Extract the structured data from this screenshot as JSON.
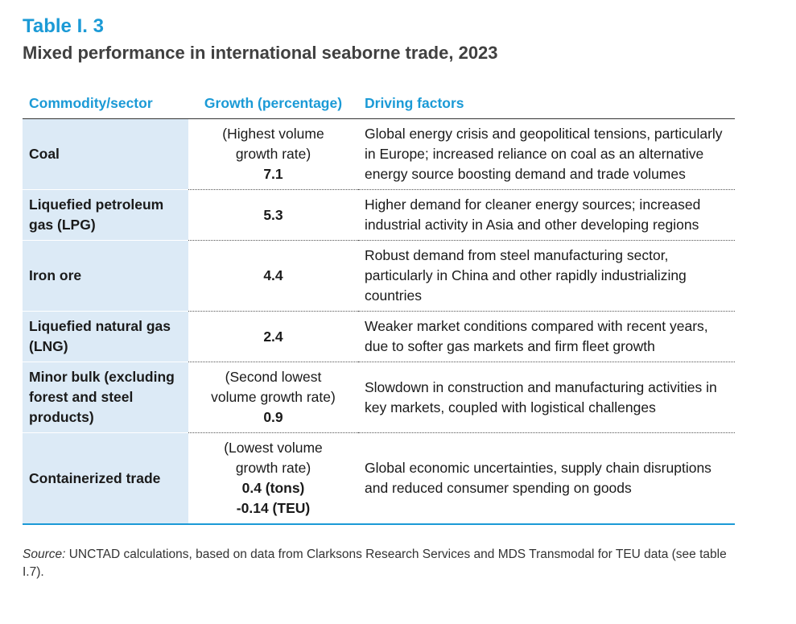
{
  "header": {
    "label": "Table I. 3",
    "title": "Mixed performance in international seaborne trade, 2023"
  },
  "columns": {
    "commodity": "Commodity/sector",
    "growth": "Growth (percentage)",
    "factors": "Driving factors"
  },
  "rows": [
    {
      "commodity": "Coal",
      "growth_note": [
        "(Highest volume",
        "growth rate)"
      ],
      "growth_values": [
        "7.1"
      ],
      "factors": "Global energy crisis and geopolitical tensions, particularly in Europe; increased reliance on coal as an alternative energy source boosting demand and trade volumes"
    },
    {
      "commodity": "Liquefied petroleum gas (LPG)",
      "growth_note": [],
      "growth_values": [
        "5.3"
      ],
      "factors": "Higher demand for cleaner energy sources; increased industrial activity in Asia and other developing regions"
    },
    {
      "commodity": "Iron ore",
      "growth_note": [],
      "growth_values": [
        "4.4"
      ],
      "factors": "Robust demand from steel manufacturing sector, particularly in China and other rapidly industrializing countries"
    },
    {
      "commodity": "Liquefied natural gas (LNG)",
      "growth_note": [],
      "growth_values": [
        "2.4"
      ],
      "factors": "Weaker market conditions compared with recent years, due to softer gas markets and firm fleet growth"
    },
    {
      "commodity": "Minor bulk (excluding forest and steel products)",
      "growth_note": [
        "(Second lowest",
        "volume growth rate)"
      ],
      "growth_values": [
        "0.9"
      ],
      "factors": "Slowdown in construction and manufacturing activities in key markets, coupled with logistical challenges"
    },
    {
      "commodity": "Containerized trade",
      "growth_note": [
        "(Lowest volume",
        "growth rate)"
      ],
      "growth_values": [
        "0.4 (tons)",
        "-0.14 (TEU)"
      ],
      "factors": "Global economic uncertainties, supply chain disruptions and reduced consumer spending on goods"
    }
  ],
  "source": {
    "label": "Source:",
    "text": "UNCTAD calculations, based on data from Clarksons Research Services and MDS Transmodal for TEU data (see table I.7)."
  }
}
